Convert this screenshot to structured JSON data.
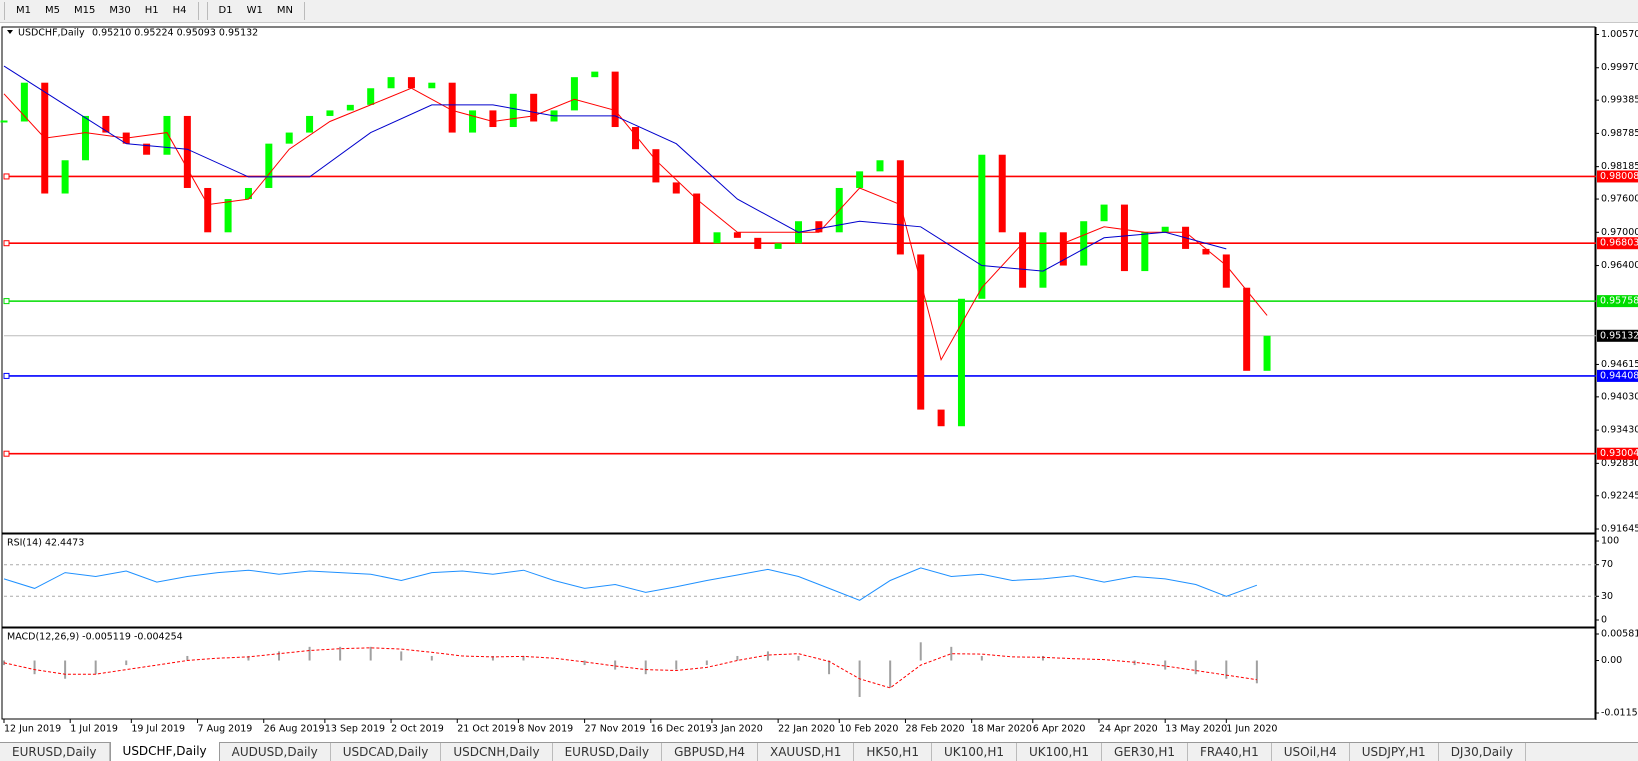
{
  "toolbar": {
    "timeframes": [
      "M1",
      "M5",
      "M15",
      "M30",
      "H1",
      "H4",
      "D1",
      "W1",
      "MN"
    ]
  },
  "tabs": {
    "items": [
      "EURUSD,Daily",
      "USDCHF,Daily",
      "AUDUSD,Daily",
      "USDCAD,Daily",
      "USDCNH,Daily",
      "EURUSD,Daily",
      "GBPUSD,H4",
      "XAUUSD,H1",
      "HK50,H1",
      "UK100,H1",
      "UK100,H1",
      "GER30,H1",
      "FRA40,H1",
      "USOil,H4",
      "USDJPY,H1",
      "DJ30,Daily"
    ],
    "active": 1
  },
  "chart_data": [
    {
      "type": "candlestick",
      "title": "USDCHF,Daily",
      "quote": "0.95210 0.95224 0.95093 0.95132",
      "up_color": "#00ff00",
      "down_color": "#ff0000",
      "xlim": [
        0,
        312
      ],
      "xticks": [
        {
          "value": 0,
          "label": "12 Jun 2019"
        },
        {
          "value": 13,
          "label": "1 Jul 2019"
        },
        {
          "value": 25,
          "label": "19 Jul 2019"
        },
        {
          "value": 38,
          "label": "7 Aug 2019"
        },
        {
          "value": 51,
          "label": "26 Aug 2019"
        },
        {
          "value": 63,
          "label": "13 Sep 2019"
        },
        {
          "value": 76,
          "label": "2 Oct 2019"
        },
        {
          "value": 89,
          "label": "21 Oct 2019"
        },
        {
          "value": 101,
          "label": "8 Nov 2019"
        },
        {
          "value": 114,
          "label": "27 Nov 2019"
        },
        {
          "value": 127,
          "label": "16 Dec 2019"
        },
        {
          "value": 139,
          "label": "3 Jan 2020"
        },
        {
          "value": 152,
          "label": "22 Jan 2020"
        },
        {
          "value": 164,
          "label": "10 Feb 2020"
        },
        {
          "value": 177,
          "label": "28 Feb 2020"
        },
        {
          "value": 190,
          "label": "18 Mar 2020"
        },
        {
          "value": 202,
          "label": "6 Apr 2020"
        },
        {
          "value": 215,
          "label": "24 Apr 2020"
        },
        {
          "value": 228,
          "label": "13 May 2020"
        },
        {
          "value": 240,
          "label": "1 Jun 2020"
        }
      ],
      "ylim": [
        0.91645,
        1.0057
      ],
      "yticks": [
        {
          "value": 1.0057,
          "label": "1.00570"
        },
        {
          "value": 0.9997,
          "label": "0.99970"
        },
        0.99385,
        0.98785,
        0.98185,
        {
          "value": 0.976,
          "label": "0.97600"
        },
        {
          "value": 0.97,
          "label": "0.97000"
        },
        {
          "value": 0.964,
          "label": "0.96400"
        },
        0.94615,
        {
          "value": 0.9403,
          "label": "0.94030"
        },
        {
          "value": 0.9343,
          "label": "0.93430"
        },
        {
          "value": 0.9283,
          "label": "0.92830"
        },
        0.92245,
        0.91645
      ],
      "x": [
        0,
        4,
        8,
        12,
        16,
        20,
        24,
        28,
        32,
        36,
        40,
        44,
        48,
        52,
        56,
        60,
        64,
        68,
        72,
        76,
        80,
        84,
        88,
        92,
        96,
        100,
        104,
        108,
        112,
        116,
        120,
        124,
        128,
        132,
        136,
        140,
        144,
        148,
        152,
        156,
        160,
        164,
        168,
        172,
        176,
        180,
        184,
        188,
        192,
        196,
        200,
        204,
        208,
        212,
        216,
        220,
        224,
        228,
        232,
        236,
        240,
        244,
        248
      ],
      "values": [
        0.99,
        0.997,
        0.977,
        0.983,
        0.991,
        0.988,
        0.986,
        0.984,
        0.991,
        0.978,
        0.97,
        0.976,
        0.978,
        0.986,
        0.988,
        0.991,
        0.992,
        0.993,
        0.996,
        0.998,
        0.996,
        0.997,
        0.988,
        0.992,
        0.989,
        0.995,
        0.99,
        0.992,
        0.998,
        0.999,
        0.989,
        0.985,
        0.979,
        0.977,
        0.968,
        0.97,
        0.969,
        0.967,
        0.968,
        0.972,
        0.97,
        0.978,
        0.981,
        0.983,
        0.966,
        0.938,
        0.935,
        0.958,
        0.984,
        0.97,
        0.96,
        0.97,
        0.964,
        0.972,
        0.975,
        0.963,
        0.97,
        0.971,
        0.967,
        0.966,
        0.96,
        0.945,
        0.95132
      ],
      "lines": [
        {
          "color": "#ff0000",
          "x": [
            0,
            8,
            16,
            24,
            32,
            40,
            48,
            56,
            64,
            72,
            80,
            88,
            96,
            104,
            112,
            120,
            128,
            136,
            144,
            152,
            160,
            168,
            176,
            184,
            192,
            200,
            208,
            216,
            224,
            232,
            240,
            248
          ],
          "values": [
            0.995,
            0.987,
            0.988,
            0.987,
            0.988,
            0.975,
            0.976,
            0.985,
            0.99,
            0.993,
            0.996,
            0.992,
            0.99,
            0.991,
            0.994,
            0.992,
            0.983,
            0.976,
            0.97,
            0.97,
            0.97,
            0.978,
            0.975,
            0.947,
            0.96,
            0.968,
            0.968,
            0.971,
            0.97,
            0.97,
            0.964,
            0.955
          ]
        },
        {
          "color": "#0000cc",
          "x": [
            0,
            12,
            24,
            36,
            48,
            60,
            72,
            84,
            96,
            108,
            120,
            132,
            144,
            156,
            168,
            180,
            192,
            204,
            216,
            228,
            240
          ],
          "values": [
            1.0,
            0.993,
            0.986,
            0.985,
            0.98,
            0.98,
            0.988,
            0.993,
            0.993,
            0.991,
            0.991,
            0.986,
            0.976,
            0.97,
            0.972,
            0.971,
            0.964,
            0.963,
            0.969,
            0.97,
            0.967
          ]
        }
      ],
      "levels": [
        {
          "value": 0.98008,
          "color": "#ff0000"
        },
        {
          "value": 0.96803,
          "color": "#ff0000"
        },
        {
          "value": 0.95758,
          "color": "#00dd00"
        },
        {
          "value": 0.95132,
          "color": "#000000"
        },
        {
          "value": 0.94408,
          "color": "#0000ff"
        },
        {
          "value": 0.93004,
          "color": "#ff0000"
        }
      ]
    },
    {
      "type": "line",
      "title": "RSI(14) 42.4473",
      "color": "#1e90ff",
      "ylim": [
        0,
        100
      ],
      "yticks": [
        100,
        70,
        30,
        0
      ],
      "grid": "dashed",
      "x": [
        0,
        6,
        12,
        18,
        24,
        30,
        36,
        42,
        48,
        54,
        60,
        66,
        72,
        78,
        84,
        90,
        96,
        102,
        108,
        114,
        120,
        126,
        132,
        138,
        144,
        150,
        156,
        162,
        168,
        174,
        180,
        186,
        192,
        198,
        204,
        210,
        216,
        222,
        228,
        234,
        240,
        246
      ],
      "values": [
        52,
        40,
        60,
        55,
        62,
        48,
        55,
        60,
        63,
        58,
        62,
        60,
        58,
        50,
        60,
        62,
        58,
        63,
        50,
        40,
        45,
        35,
        42,
        50,
        57,
        64,
        55,
        40,
        25,
        50,
        66,
        55,
        58,
        50,
        52,
        56,
        48,
        55,
        52,
        45,
        30,
        44
      ]
    },
    {
      "type": "histogram",
      "title": "MACD(12,26,9) -0.005119 -0.004254",
      "color": "#a0a0a0",
      "signal_color": "#ff0000",
      "ylim": [
        -0.011514,
        0.005818
      ],
      "yticks": [
        0.005818,
        {
          "value": 0,
          "label": "0.00"
        },
        -0.011514
      ],
      "x": [
        0,
        6,
        12,
        18,
        24,
        30,
        36,
        42,
        48,
        54,
        60,
        66,
        72,
        78,
        84,
        90,
        96,
        102,
        108,
        114,
        120,
        126,
        132,
        138,
        144,
        150,
        156,
        162,
        168,
        174,
        180,
        186,
        192,
        198,
        204,
        210,
        216,
        222,
        228,
        234,
        240,
        246
      ],
      "values": [
        -0.001,
        -0.003,
        -0.004,
        -0.003,
        -0.001,
        0.0,
        0.001,
        0.0,
        0.001,
        0.002,
        0.003,
        0.003,
        0.003,
        0.002,
        0.001,
        0.0,
        0.001,
        0.001,
        0.0,
        -0.001,
        -0.002,
        -0.003,
        -0.002,
        -0.001,
        0.001,
        0.002,
        0.001,
        -0.003,
        -0.008,
        -0.006,
        0.004,
        0.003,
        0.001,
        0.0,
        0.001,
        0.0,
        0.0,
        -0.001,
        -0.002,
        -0.003,
        -0.004,
        -0.005
      ],
      "signal": [
        -0.0005,
        -0.002,
        -0.003,
        -0.003,
        -0.002,
        -0.001,
        0.0,
        0.0005,
        0.0008,
        0.0015,
        0.0022,
        0.0026,
        0.0028,
        0.0025,
        0.0018,
        0.001,
        0.0008,
        0.0009,
        0.0005,
        -0.0003,
        -0.0012,
        -0.002,
        -0.0022,
        -0.0015,
        0.0,
        0.0012,
        0.0015,
        -0.0002,
        -0.004,
        -0.006,
        -0.001,
        0.0015,
        0.0014,
        0.0008,
        0.0007,
        0.0004,
        0.0002,
        -0.0004,
        -0.0012,
        -0.0022,
        -0.0032,
        -0.0042
      ]
    }
  ]
}
